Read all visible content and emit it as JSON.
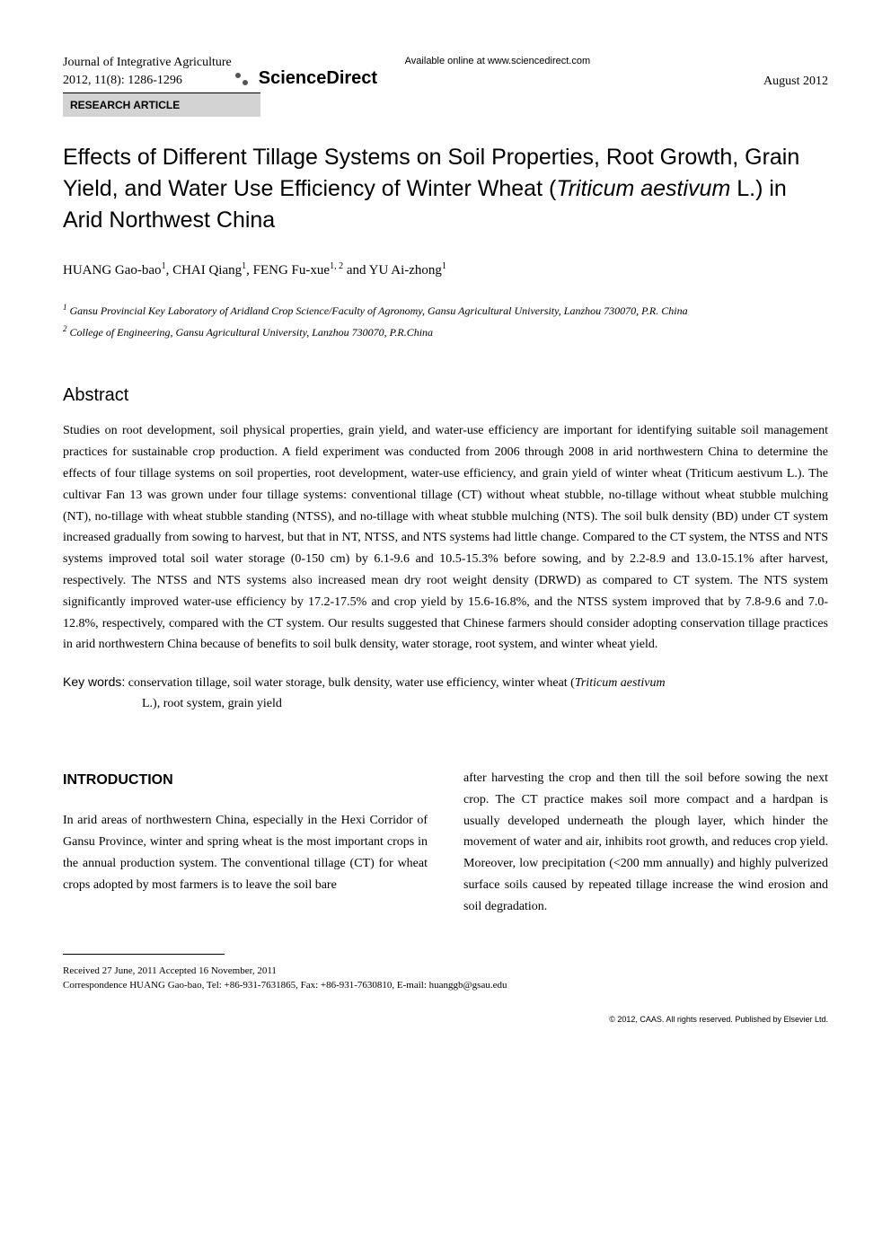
{
  "header": {
    "journal_name": "Journal of Integrative Agriculture",
    "journal_issue": "2012, 11(8): 1286-1296",
    "available_online": "Available online at www.sciencedirect.com",
    "sciencedirect": "ScienceDirect",
    "pub_date": "August 2012",
    "article_type": "RESEARCH ARTICLE"
  },
  "article": {
    "title_part1": "Effects of Different Tillage Systems on Soil Properties, Root Growth, Grain Yield, and Water Use Efficiency of Winter Wheat (",
    "title_italic": "Triticum aestivum",
    "title_part2": " L.) in Arid Northwest China",
    "authors_html": "HUANG Gao-bao¹, CHAI Qiang¹, FENG Fu-xue¹·² and YU Ai-zhong¹",
    "affiliation1": "Gansu Provincial Key Laboratory of Aridland Crop Science/Faculty of Agronomy, Gansu Agricultural University, Lanzhou 730070, P.R. China",
    "affiliation2": "College of Engineering, Gansu Agricultural University, Lanzhou 730070, P.R.China"
  },
  "abstract": {
    "heading": "Abstract",
    "text": "Studies on root development, soil physical properties, grain yield, and water-use efficiency are important for identifying suitable soil management practices for sustainable crop production. A field experiment was conducted from 2006 through 2008 in arid northwestern China to determine the effects of four tillage systems on soil properties, root development, water-use efficiency, and grain yield of winter wheat (Triticum aestivum L.). The cultivar Fan 13 was grown under four tillage systems: conventional tillage (CT) without wheat stubble, no-tillage without wheat stubble mulching (NT), no-tillage with wheat stubble standing (NTSS), and no-tillage with wheat stubble mulching (NTS). The soil bulk density (BD) under CT system increased gradually from sowing to harvest, but that in NT, NTSS, and NTS systems had little change. Compared to the CT system, the NTSS and NTS systems improved total soil water storage (0-150 cm) by 6.1-9.6 and 10.5-15.3% before sowing, and by 2.2-8.9 and 13.0-15.1% after harvest, respectively. The NTSS and NTS systems also increased mean dry root weight density (DRWD) as compared to CT system. The NTS system significantly improved water-use efficiency by 17.2-17.5% and crop yield by 15.6-16.8%, and the NTSS system improved that by 7.8-9.6 and 7.0-12.8%, respectively, compared with the CT system. Our results suggested that Chinese farmers should consider adopting conservation tillage practices in arid northwestern China because of benefits to soil bulk density, water storage, root system, and winter wheat yield."
  },
  "keywords": {
    "label": "Key words:",
    "text_line1": "conservation tillage, soil water storage, bulk density, water use efficiency, winter wheat (",
    "text_italic": "Triticum aestivum",
    "text_line2": "L.), root system, grain yield"
  },
  "introduction": {
    "heading": "INTRODUCTION",
    "col1": "In arid areas of northwestern China, especially in the Hexi Corridor of Gansu Province, winter and spring wheat is the most important crops in the annual production system. The conventional tillage (CT) for wheat crops adopted by most farmers is to leave the soil bare",
    "col2": "after harvesting the crop and then till the soil before sowing the next crop. The CT practice makes soil more compact and a hardpan is usually developed underneath the plough layer, which hinder the movement of water and air, inhibits root growth, and reduces crop yield. Moreover, low precipitation (<200 mm annually) and highly pulverized surface soils caused by repeated tillage increase the wind erosion and soil degradation."
  },
  "footer": {
    "received": "Received  27 June, 2011    Accepted  16 November, 2011",
    "correspondence": "Correspondence HUANG Gao-bao, Tel: +86-931-7631865, Fax: +86-931-7630810, E-mail: huanggb@gsau.edu",
    "copyright": "© 2012, CAAS. All rights reserved. Published by Elsevier Ltd."
  }
}
